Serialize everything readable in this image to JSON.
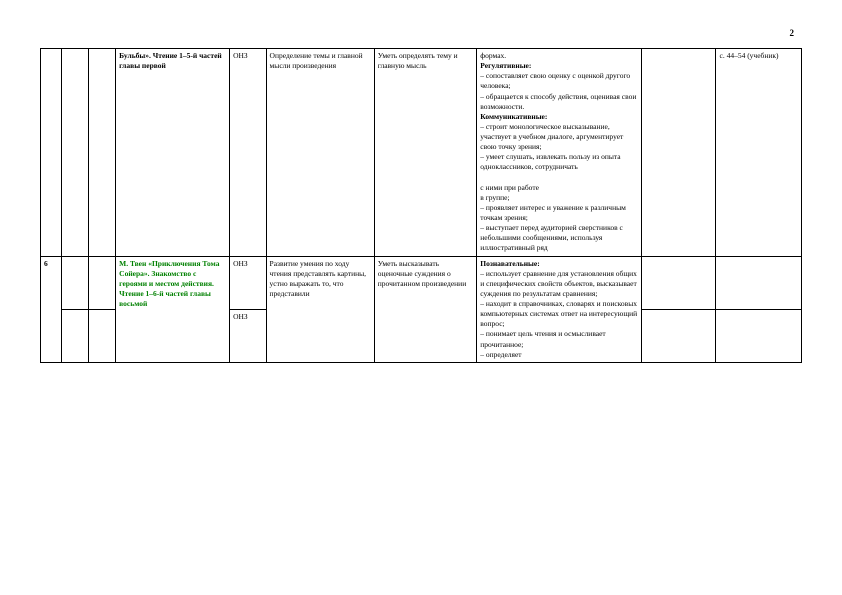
{
  "page_number": "2",
  "rows": [
    {
      "n": "",
      "c2": "",
      "c3": "",
      "topic": "Бульбы». Чтение 1–5-й частей главы первой",
      "type": "ОНЗ",
      "activity": "Определение темы и главной мысли произведения",
      "skill": "Уметь определять тему и главную мысль",
      "results": "формах.\n<b>Регулятивные:</b>\n– сопоставляет свою оценку с оценкой другого человека;\n– обращается к способу действия, оценивая свои возможности.\n<b>Коммуникативные:</b>\n– строит монологическое высказывание, участвует в учебном диалоге, аргументирует свою точку зрения;\n– умеет слушать, извлекать пользу из опыта одноклассников, сотрудничать\n\nс ними при работе\nв группе;\n– проявляет интерес и уважение к различным точкам зрения;\n– выступает перед аудиторией сверстников с небольшими сообщениями, используя иллюстративный ряд",
      "c9": "",
      "ref": "с. 44–54 (учебник)"
    },
    {
      "n": "6",
      "c2": "",
      "c3": "",
      "topic_green": "М. Твен «Приключения Тома Сойера». Знакомство с героями и местом действия. Чтение 1–6-й частей главы восьмой",
      "type1": "ОНЗ",
      "type2": "ОНЗ",
      "activity": "Развитие умения по ходу чтения представлять картины, устно выражать то, что представили",
      "skill": "Уметь высказывать оценочные суждения о прочитанном произведении",
      "results": "<b>Познавательные:</b>\n– использует сравнение для установления общих и специфических свойств объектов, высказывает суждения по результатам сравнения;\n– находит в справочниках, словарях и поисковых компьютерных системах ответ на интересующий вопрос;\n– понимает цель чтения и осмысливает прочитанное;\n– определяет",
      "c9": "",
      "ref": ""
    }
  ]
}
